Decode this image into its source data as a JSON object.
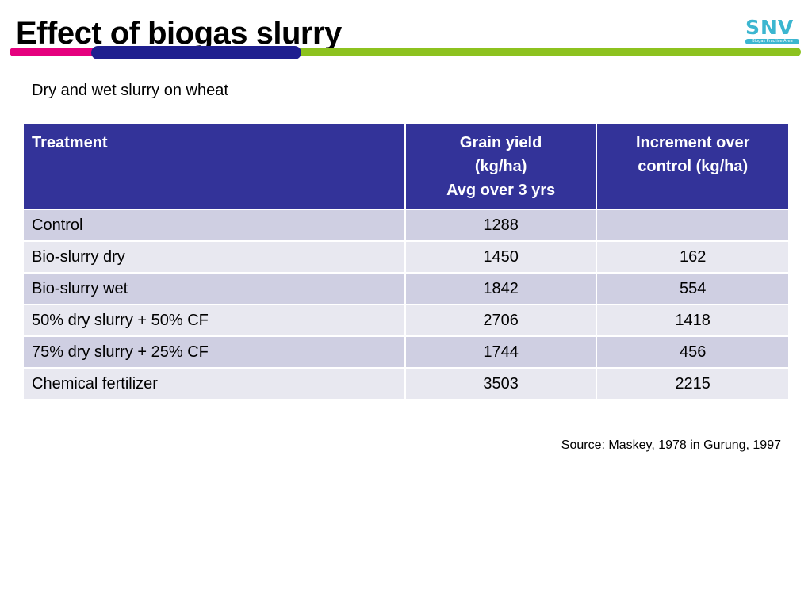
{
  "slide": {
    "title": "Effect of biogas slurry",
    "subtitle": "Dry and wet slurry on wheat",
    "source": "Source: Maskey, 1978 in Gurung, 1997"
  },
  "logo": {
    "text": "SNV",
    "tagline": "Biogas Practice Area"
  },
  "colors": {
    "header_bg": "#333399",
    "row_odd": "#cfcfe2",
    "row_even": "#e8e8f0",
    "stripe_pink": "#e5007e",
    "stripe_navy": "#1f1f8f",
    "stripe_green": "#8dc21f",
    "logo_blue": "#3cb6d0"
  },
  "table": {
    "headers": [
      {
        "lines": [
          "Treatment"
        ]
      },
      {
        "lines": [
          "Grain yield",
          "(kg/ha)",
          "Avg over 3 yrs"
        ]
      },
      {
        "lines": [
          "Increment over",
          "control (kg/ha)"
        ]
      }
    ],
    "rows": [
      {
        "treatment": "Control",
        "yield": "1288",
        "increment": ""
      },
      {
        "treatment": "Bio-slurry dry",
        "yield": "1450",
        "increment": "162"
      },
      {
        "treatment": "Bio-slurry wet",
        "yield": "1842",
        "increment": "554"
      },
      {
        "treatment": "50% dry slurry + 50% CF",
        "yield": "2706",
        "increment": "1418"
      },
      {
        "treatment": "75% dry slurry + 25% CF",
        "yield": "1744",
        "increment": "456"
      },
      {
        "treatment": "Chemical fertilizer",
        "yield": "3503",
        "increment": "2215"
      }
    ]
  }
}
